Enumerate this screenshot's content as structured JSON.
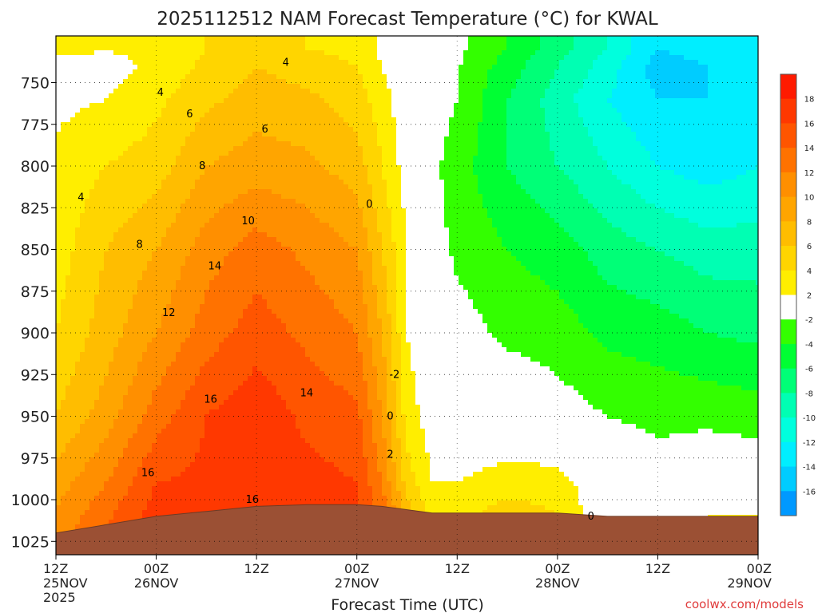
{
  "chart_data": {
    "type": "heatmap",
    "title": "2025112512 NAM Forecast Temperature (°C) for KWAL",
    "xlabel": "Forecast Time (UTC)",
    "ylabel": "",
    "credit": "coolwx.com/models",
    "x_range_hours": [
      0,
      84
    ],
    "y_range_hpa": [
      1033,
      722
    ],
    "y_ticks": [
      750,
      775,
      800,
      825,
      850,
      875,
      900,
      925,
      950,
      975,
      1000,
      1025
    ],
    "y_tick_labels": [
      "750",
      "775",
      "800",
      "825",
      "850",
      "875",
      "900",
      "925",
      "950",
      "975",
      "1000",
      "1025"
    ],
    "x_ticks": [
      {
        "hour": 0,
        "time": "12Z",
        "date": "25NOV",
        "year": "2025"
      },
      {
        "hour": 12,
        "time": "00Z",
        "date": "26NOV",
        "year": ""
      },
      {
        "hour": 24,
        "time": "12Z",
        "date": "",
        "year": ""
      },
      {
        "hour": 36,
        "time": "00Z",
        "date": "27NOV",
        "year": ""
      },
      {
        "hour": 48,
        "time": "12Z",
        "date": "",
        "year": ""
      },
      {
        "hour": 60,
        "time": "00Z",
        "date": "28NOV",
        "year": ""
      },
      {
        "hour": 72,
        "time": "12Z",
        "date": "",
        "year": ""
      },
      {
        "hour": 84,
        "time": "00Z",
        "date": "29NOV",
        "year": ""
      }
    ],
    "grid": true,
    "colorbar": {
      "placement": "right",
      "labels": [
        "18",
        "16",
        "14",
        "12",
        "10",
        "8",
        "6",
        "4",
        "2",
        "-2",
        "-4",
        "-6",
        "-8",
        "-10",
        "-12",
        "-14",
        "-16"
      ],
      "bins": [
        {
          "lo": 18,
          "hi": 20,
          "color": "#ff1a00"
        },
        {
          "lo": 16,
          "hi": 18,
          "color": "#ff3800"
        },
        {
          "lo": 14,
          "hi": 16,
          "color": "#ff5500"
        },
        {
          "lo": 12,
          "hi": 14,
          "color": "#ff7200"
        },
        {
          "lo": 10,
          "hi": 12,
          "color": "#ff8f00"
        },
        {
          "lo": 8,
          "hi": 10,
          "color": "#ffa500"
        },
        {
          "lo": 6,
          "hi": 8,
          "color": "#ffbd00"
        },
        {
          "lo": 4,
          "hi": 6,
          "color": "#ffd500"
        },
        {
          "lo": 2,
          "hi": 4,
          "color": "#ffee00"
        },
        {
          "lo": -2,
          "hi": 2,
          "color": "#ffffff"
        },
        {
          "lo": -4,
          "hi": -2,
          "color": "#33ff00"
        },
        {
          "lo": -6,
          "hi": -4,
          "color": "#00ff33"
        },
        {
          "lo": -8,
          "hi": -6,
          "color": "#00ff77"
        },
        {
          "lo": -10,
          "hi": -8,
          "color": "#00ffb3"
        },
        {
          "lo": -12,
          "hi": -10,
          "color": "#00ffdd"
        },
        {
          "lo": -14,
          "hi": -12,
          "color": "#00eeff"
        },
        {
          "lo": -16,
          "hi": -14,
          "color": "#00ccff"
        },
        {
          "lo": -18,
          "hi": -16,
          "color": "#0099ff"
        }
      ]
    },
    "series": [
      {
        "points": [
          {
            "hour": 0,
            "p": [
              [
                1020,
                11
              ],
              [
                990,
                9
              ],
              [
                950,
                6
              ],
              [
                900,
                4
              ],
              [
                850,
                3
              ],
              [
                800,
                2.5
              ],
              [
                760,
                1.5
              ],
              [
                740,
                1
              ],
              [
                730,
                3
              ]
            ]
          },
          {
            "hour": 6,
            "p": [
              [
                1015,
                14
              ],
              [
                990,
                12
              ],
              [
                950,
                9
              ],
              [
                900,
                7
              ],
              [
                850,
                6
              ],
              [
                800,
                4
              ],
              [
                760,
                2
              ],
              [
                740,
                1
              ],
              [
                730,
                2
              ]
            ]
          },
          {
            "hour": 12,
            "p": [
              [
                1010,
                17
              ],
              [
                990,
                16
              ],
              [
                950,
                13
              ],
              [
                900,
                10
              ],
              [
                850,
                8
              ],
              [
                800,
                5
              ],
              [
                760,
                3.5
              ],
              [
                740,
                2.5
              ],
              [
                730,
                3
              ]
            ]
          },
          {
            "hour": 18,
            "p": [
              [
                1007,
                17
              ],
              [
                990,
                16.5
              ],
              [
                950,
                16
              ],
              [
                900,
                13
              ],
              [
                850,
                11
              ],
              [
                800,
                8
              ],
              [
                760,
                5.5
              ],
              [
                740,
                4.5
              ],
              [
                730,
                4
              ]
            ]
          },
          {
            "hour": 24,
            "p": [
              [
                1004,
                17
              ],
              [
                990,
                17
              ],
              [
                950,
                17.5
              ],
              [
                900,
                15
              ],
              [
                850,
                13
              ],
              [
                800,
                9
              ],
              [
                760,
                7
              ],
              [
                740,
                6
              ],
              [
                730,
                5
              ]
            ]
          },
          {
            "hour": 30,
            "p": [
              [
                1003,
                17
              ],
              [
                990,
                16.8
              ],
              [
                950,
                15.5
              ],
              [
                900,
                13.5
              ],
              [
                850,
                11.5
              ],
              [
                800,
                8.5
              ],
              [
                760,
                6.5
              ],
              [
                740,
                5
              ],
              [
                730,
                4
              ]
            ]
          },
          {
            "hour": 36,
            "p": [
              [
                1003,
                16
              ],
              [
                990,
                16
              ],
              [
                950,
                14.5
              ],
              [
                900,
                12
              ],
              [
                850,
                10
              ],
              [
                800,
                7
              ],
              [
                760,
                5
              ],
              [
                740,
                4
              ],
              [
                730,
                3.5
              ]
            ]
          },
          {
            "hour": 39,
            "p": [
              [
                1004,
                13
              ],
              [
                990,
                12
              ],
              [
                950,
                10
              ],
              [
                900,
                8
              ],
              [
                850,
                6
              ],
              [
                800,
                4
              ],
              [
                760,
                3
              ],
              [
                740,
                2
              ],
              [
                730,
                1.5
              ]
            ]
          },
          {
            "hour": 42,
            "p": [
              [
                1006,
                7
              ],
              [
                990,
                5
              ],
              [
                950,
                3
              ],
              [
                900,
                2
              ],
              [
                850,
                2
              ],
              [
                800,
                1
              ],
              [
                760,
                0.5
              ],
              [
                740,
                0
              ],
              [
                730,
                -0.5
              ]
            ]
          },
          {
            "hour": 45,
            "p": [
              [
                1008,
                3
              ],
              [
                990,
                2
              ],
              [
                950,
                1
              ],
              [
                900,
                0
              ],
              [
                850,
                -1
              ],
              [
                800,
                -1.5
              ],
              [
                760,
                -1
              ],
              [
                740,
                -1
              ],
              [
                730,
                -1
              ]
            ]
          },
          {
            "hour": 48,
            "p": [
              [
                1008,
                3
              ],
              [
                990,
                2
              ],
              [
                950,
                0
              ],
              [
                900,
                -1
              ],
              [
                850,
                -2.5
              ],
              [
                800,
                -3
              ],
              [
                760,
                -2
              ],
              [
                740,
                -1.8
              ],
              [
                730,
                -1.5
              ]
            ]
          },
          {
            "hour": 54,
            "p": [
              [
                1008,
                5
              ],
              [
                990,
                3
              ],
              [
                950,
                0
              ],
              [
                900,
                -2.5
              ],
              [
                850,
                -4
              ],
              [
                800,
                -6
              ],
              [
                760,
                -6
              ],
              [
                740,
                -5
              ],
              [
                730,
                -4
              ]
            ]
          },
          {
            "hour": 60,
            "p": [
              [
                1008,
                4
              ],
              [
                990,
                3
              ],
              [
                950,
                -1
              ],
              [
                900,
                -3
              ],
              [
                850,
                -5
              ],
              [
                800,
                -8
              ],
              [
                760,
                -9
              ],
              [
                740,
                -8
              ],
              [
                730,
                -7
              ]
            ]
          },
          {
            "hour": 66,
            "p": [
              [
                1010,
                0
              ],
              [
                990,
                0
              ],
              [
                950,
                -2
              ],
              [
                900,
                -4.5
              ],
              [
                850,
                -7
              ],
              [
                800,
                -10
              ],
              [
                760,
                -12
              ],
              [
                740,
                -11
              ],
              [
                730,
                -10
              ]
            ]
          },
          {
            "hour": 72,
            "p": [
              [
                1010,
                -1
              ],
              [
                990,
                -1
              ],
              [
                950,
                -2.5
              ],
              [
                900,
                -5
              ],
              [
                850,
                -8
              ],
              [
                800,
                -12
              ],
              [
                760,
                -14
              ],
              [
                740,
                -15
              ],
              [
                730,
                -14
              ]
            ]
          },
          {
            "hour": 78,
            "p": [
              [
                1010,
                2
              ],
              [
                990,
                0
              ],
              [
                950,
                -2.5
              ],
              [
                900,
                -6
              ],
              [
                850,
                -9
              ],
              [
                800,
                -13
              ],
              [
                760,
                -14
              ],
              [
                740,
                -14
              ],
              [
                730,
                -13
              ]
            ]
          },
          {
            "hour": 84,
            "p": [
              [
                1010,
                2
              ],
              [
                990,
                0
              ],
              [
                950,
                -3
              ],
              [
                900,
                -6.5
              ],
              [
                850,
                -9
              ],
              [
                800,
                -12
              ],
              [
                760,
                -13
              ],
              [
                740,
                -13
              ],
              [
                730,
                -13
              ]
            ]
          }
        ]
      }
    ],
    "contour_labels": [
      {
        "hour": 27.5,
        "p": 738,
        "text": "4"
      },
      {
        "hour": 12.5,
        "p": 756,
        "text": "4"
      },
      {
        "hour": 16.0,
        "p": 769,
        "text": "6"
      },
      {
        "hour": 25.0,
        "p": 778,
        "text": "6"
      },
      {
        "hour": 17.5,
        "p": 800,
        "text": "8"
      },
      {
        "hour": 3.0,
        "p": 819,
        "text": "4"
      },
      {
        "hour": 23.0,
        "p": 833,
        "text": "10"
      },
      {
        "hour": 10.0,
        "p": 847,
        "text": "8"
      },
      {
        "hour": 19.0,
        "p": 860,
        "text": "14"
      },
      {
        "hour": 13.5,
        "p": 888,
        "text": "12"
      },
      {
        "hour": 18.5,
        "p": 940,
        "text": "16"
      },
      {
        "hour": 30.0,
        "p": 936,
        "text": "14"
      },
      {
        "hour": 11.0,
        "p": 984,
        "text": "16"
      },
      {
        "hour": 23.5,
        "p": 1000,
        "text": "16"
      },
      {
        "hour": 37.5,
        "p": 823,
        "text": "0"
      },
      {
        "hour": 40.5,
        "p": 925,
        "text": "-2"
      },
      {
        "hour": 40.0,
        "p": 950,
        "text": "0"
      },
      {
        "hour": 40.0,
        "p": 973,
        "text": "2"
      },
      {
        "hour": 64.0,
        "p": 1010,
        "text": "0"
      }
    ]
  }
}
